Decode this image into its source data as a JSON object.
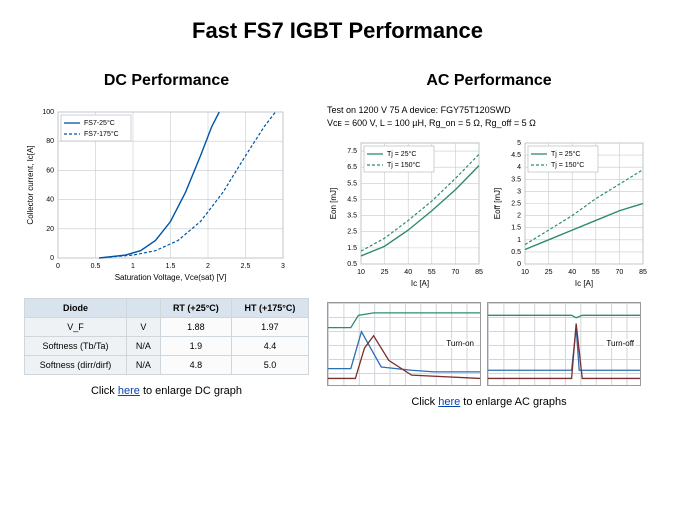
{
  "title": "Fast FS7 IGBT Performance",
  "left": {
    "subtitle": "DC Performance",
    "chart": {
      "type": "line",
      "x_label": "Saturation Voltage, Vce(sat) [V]",
      "y_label": "Collector current, Ic[A]",
      "xlim": [
        0,
        3.0
      ],
      "xtick_step": 0.5,
      "ylim": [
        0,
        100
      ],
      "ytick_step": 20,
      "grid_color": "#c5cbd0",
      "background_color": "#ffffff",
      "series": [
        {
          "name": "FS7-25°C",
          "style": "solid",
          "color": "#0055a5",
          "points": [
            [
              0.55,
              0
            ],
            [
              0.9,
              2
            ],
            [
              1.1,
              5
            ],
            [
              1.3,
              12
            ],
            [
              1.5,
              25
            ],
            [
              1.7,
              45
            ],
            [
              1.9,
              70
            ],
            [
              2.05,
              90
            ],
            [
              2.15,
              100
            ]
          ]
        },
        {
          "name": "FS7-175°C",
          "style": "dashed",
          "color": "#0055a5",
          "points": [
            [
              0.55,
              0
            ],
            [
              1.0,
              2
            ],
            [
              1.3,
              5
            ],
            [
              1.6,
              12
            ],
            [
              1.9,
              25
            ],
            [
              2.2,
              45
            ],
            [
              2.5,
              70
            ],
            [
              2.75,
              90
            ],
            [
              2.9,
              100
            ]
          ]
        }
      ],
      "legend_pos": "top-left"
    },
    "table": {
      "columns": [
        "Diode",
        "",
        "RT (+25°C)",
        "HT (+175°C)"
      ],
      "rows": [
        [
          "V_F",
          "V",
          "1.88",
          "1.97"
        ],
        [
          "Softness (Tb/Ta)",
          "N/A",
          "1.9",
          "4.4"
        ],
        [
          "Softness (dirr/dirf)",
          "N/A",
          "4.8",
          "5.0"
        ]
      ]
    },
    "link_prefix": "Click ",
    "link_text": "here",
    "link_suffix": " to enlarge DC graph"
  },
  "right": {
    "subtitle": "AC Performance",
    "note_line1": "Test on 1200 V 75 A device: FGY75T120SWD",
    "note_line2": "Vᴄᴇ = 600 V, L = 100 µH, Rg_on = 5 Ω, Rg_off = 5 Ω",
    "chart_common": {
      "x_label": "Ic [A]",
      "xlim": [
        10,
        85
      ],
      "xtick_step": 15,
      "grid_color": "#c5cbd0",
      "series_colors": {
        "solid": "#2e8b6f",
        "dashed": "#2e8b6f"
      },
      "legend": [
        {
          "name": "Tj = 25°C",
          "style": "solid"
        },
        {
          "name": "Tj = 150°C",
          "style": "dashed"
        }
      ]
    },
    "chart_eon": {
      "y_label": "Eon [mJ]",
      "ylim": [
        0.5,
        8
      ],
      "yticks": [
        0.5,
        1.5,
        2.5,
        3.5,
        4.5,
        5.5,
        6.5,
        7.5
      ],
      "series": [
        {
          "style": "solid",
          "points": [
            [
              10,
              1.0
            ],
            [
              25,
              1.6
            ],
            [
              40,
              2.6
            ],
            [
              55,
              3.8
            ],
            [
              70,
              5.1
            ],
            [
              85,
              6.6
            ]
          ]
        },
        {
          "style": "dashed",
          "points": [
            [
              10,
              1.3
            ],
            [
              25,
              2.1
            ],
            [
              40,
              3.2
            ],
            [
              55,
              4.4
            ],
            [
              70,
              5.8
            ],
            [
              85,
              7.3
            ]
          ]
        }
      ]
    },
    "chart_eoff": {
      "y_label": "Eoff [mJ]",
      "ylim": [
        0.0,
        5.0
      ],
      "yticks": [
        0.0,
        0.5,
        1.0,
        1.5,
        2.0,
        2.5,
        3.0,
        3.5,
        4.0,
        4.5,
        5.0
      ],
      "series": [
        {
          "style": "solid",
          "points": [
            [
              10,
              0.6
            ],
            [
              25,
              1.0
            ],
            [
              40,
              1.4
            ],
            [
              55,
              1.8
            ],
            [
              70,
              2.2
            ],
            [
              85,
              2.5
            ]
          ]
        },
        {
          "style": "dashed",
          "points": [
            [
              10,
              0.8
            ],
            [
              25,
              1.4
            ],
            [
              40,
              2.0
            ],
            [
              55,
              2.7
            ],
            [
              70,
              3.3
            ],
            [
              85,
              3.9
            ]
          ]
        }
      ]
    },
    "waveforms": {
      "turn_on": {
        "label": "Turn-on",
        "traces": [
          {
            "color": "#2e8b6f",
            "points": [
              [
                0,
                0.3
              ],
              [
                0.15,
                0.3
              ],
              [
                0.2,
                0.15
              ],
              [
                0.3,
                0.12
              ],
              [
                0.45,
                0.12
              ],
              [
                0.55,
                0.12
              ],
              [
                1.0,
                0.12
              ]
            ]
          },
          {
            "color": "#2b6fb3",
            "points": [
              [
                0,
                0.8
              ],
              [
                0.15,
                0.8
              ],
              [
                0.22,
                0.35
              ],
              [
                0.35,
                0.78
              ],
              [
                0.55,
                0.82
              ],
              [
                0.7,
                0.84
              ],
              [
                1.0,
                0.84
              ]
            ]
          },
          {
            "color": "#7a2f2f",
            "points": [
              [
                0,
                0.92
              ],
              [
                0.18,
                0.92
              ],
              [
                0.24,
                0.55
              ],
              [
                0.3,
                0.4
              ],
              [
                0.4,
                0.7
              ],
              [
                0.55,
                0.88
              ],
              [
                1.0,
                0.92
              ]
            ]
          }
        ]
      },
      "turn_off": {
        "label": "Turn-off",
        "traces": [
          {
            "color": "#2e8b6f",
            "points": [
              [
                0,
                0.15
              ],
              [
                0.55,
                0.15
              ],
              [
                0.58,
                0.18
              ],
              [
                0.62,
                0.15
              ],
              [
                1.0,
                0.15
              ]
            ]
          },
          {
            "color": "#2b6fb3",
            "points": [
              [
                0,
                0.82
              ],
              [
                0.55,
                0.82
              ],
              [
                0.58,
                0.3
              ],
              [
                0.6,
                0.82
              ],
              [
                1.0,
                0.82
              ]
            ]
          },
          {
            "color": "#7a2f2f",
            "points": [
              [
                0,
                0.92
              ],
              [
                0.55,
                0.92
              ],
              [
                0.58,
                0.25
              ],
              [
                0.62,
                0.92
              ],
              [
                1.0,
                0.92
              ]
            ]
          }
        ]
      }
    },
    "link_prefix": "Click ",
    "link_text": "here",
    "link_suffix": " to enlarge AC graphs"
  }
}
